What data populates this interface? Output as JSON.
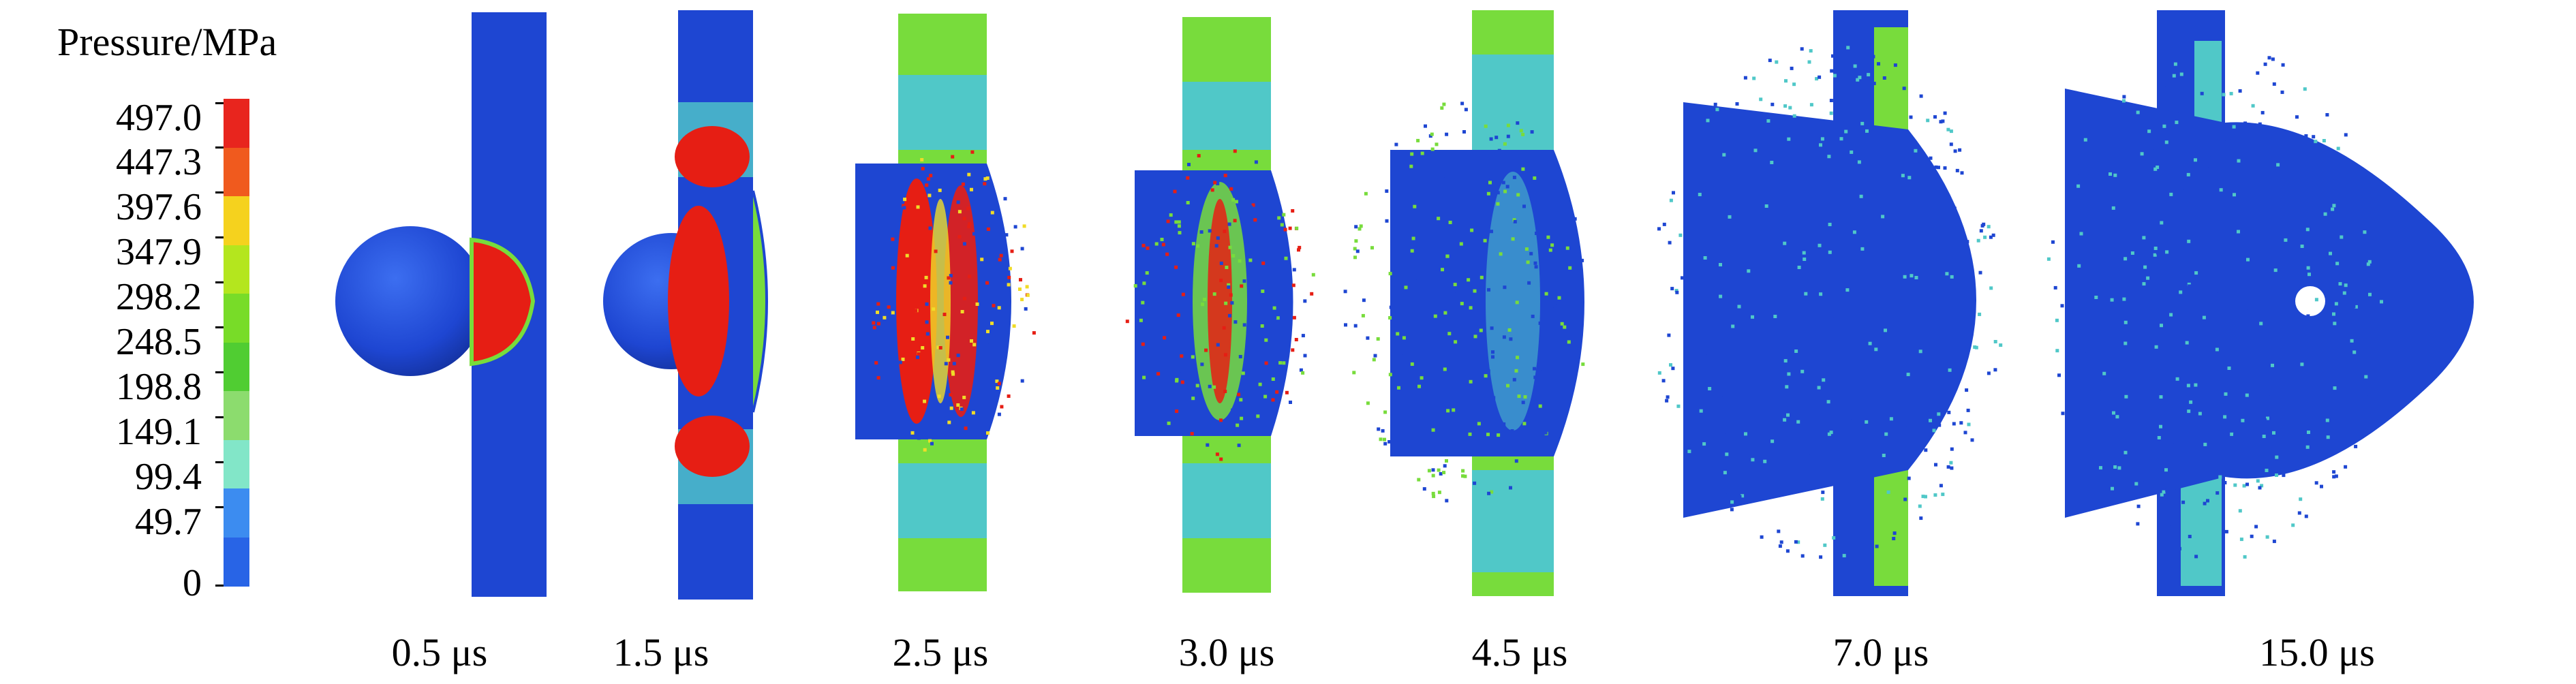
{
  "legend": {
    "title": "Pressure/MPa",
    "ticks": [
      "497.0",
      "447.3",
      "397.6",
      "347.9",
      "298.2",
      "248.5",
      "198.8",
      "149.1",
      "99.4",
      "49.7",
      "0"
    ],
    "colors": [
      "#e8251e",
      "#f05a1e",
      "#f5d21e",
      "#b4e61e",
      "#78dc28",
      "#50cd32",
      "#8cdc6e",
      "#82e6c8",
      "#3c8cf0",
      "#2864e6"
    ]
  },
  "times": [
    "0.5 μs",
    "1.5 μs",
    "2.5 μs",
    "3.0 μs",
    "4.5 μs",
    "7.0 μs",
    "15.0 μs"
  ],
  "palette": {
    "base_blue": "#1e46d2",
    "red": "#e61e14",
    "green": "#78dc3c",
    "light_green": "#9be650",
    "cyan": "#50c8c8",
    "yellow": "#f0dc28"
  }
}
